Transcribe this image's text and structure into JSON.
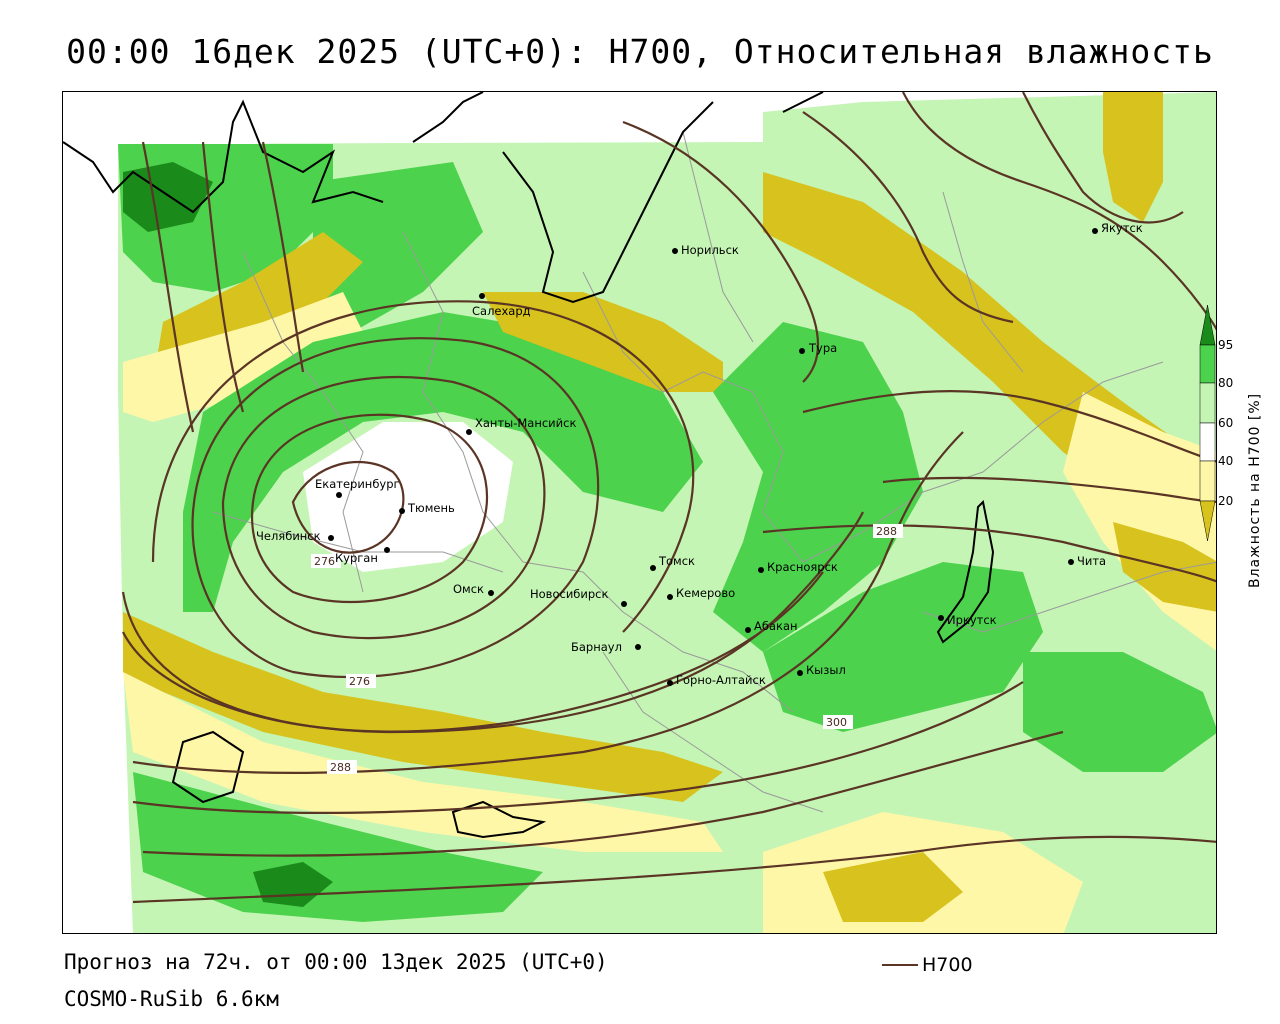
{
  "title": "00:00 16дек 2025 (UTC+0): H700, Относительная влажность",
  "forecast_text": "Прогноз на 72ч. от 00:00 13дек 2025 (UTC+0)",
  "model_text": "COSMO-RuSib 6.6км",
  "line_legend": {
    "label": "H700",
    "color": "#5a3424"
  },
  "colorbar": {
    "label": "Влажность на H700 [%]",
    "ticks": [
      "20",
      "40",
      "60",
      "80",
      "95"
    ],
    "colors": [
      "#d8c21e",
      "#fff7a8",
      "#ffffff",
      "#c4f5b4",
      "#4cd24c",
      "#1a8a1a"
    ]
  },
  "cities": [
    {
      "name": "Якутск"
    },
    {
      "name": "Норильск"
    },
    {
      "name": "Салехард"
    },
    {
      "name": "Тура"
    },
    {
      "name": "Ханты-Мансийск"
    },
    {
      "name": "Екатеринбург"
    },
    {
      "name": "Тюмень"
    },
    {
      "name": "Челябинск"
    },
    {
      "name": "Курган"
    },
    {
      "name": "Омск"
    },
    {
      "name": "Томск"
    },
    {
      "name": "Новосибирск"
    },
    {
      "name": "Кемерово"
    },
    {
      "name": "Красноярск"
    },
    {
      "name": "Барнаул"
    },
    {
      "name": "Абакан"
    },
    {
      "name": "Горно-Алтайск"
    },
    {
      "name": "Кызыл"
    },
    {
      "name": "Иркутск"
    },
    {
      "name": "Чита"
    }
  ],
  "contour_labels": [
    "288",
    "276",
    "288",
    "300",
    "276"
  ]
}
